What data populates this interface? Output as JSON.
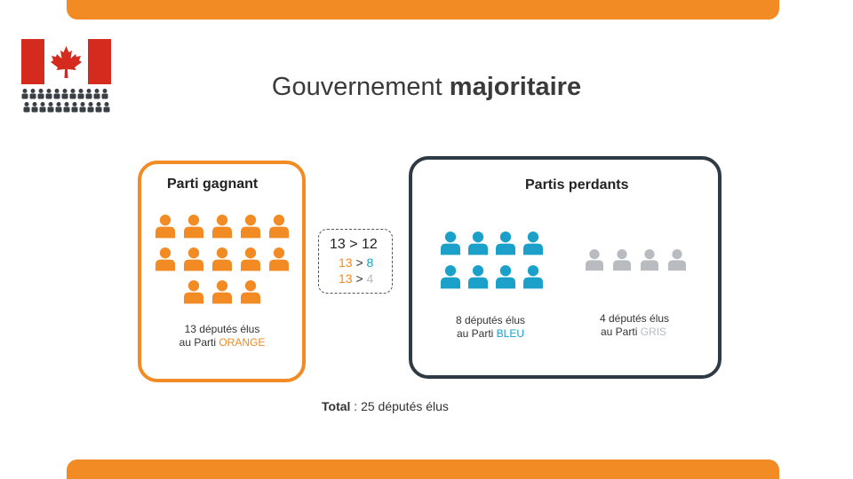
{
  "title": {
    "light": "Gouvernement",
    "bold": "majoritaire"
  },
  "winner": {
    "label": "Parti gagnant",
    "count": 13,
    "caption_line1": "13 députés élus",
    "caption_prefix": "au Parti",
    "party": "ORANGE",
    "color": "#f28b23"
  },
  "losers": {
    "label": "Partis perdants",
    "blue": {
      "count": 8,
      "caption_line1": "8 députés élus",
      "caption_prefix": "au Parti",
      "party": "BLEU",
      "color": "#1ba1c9"
    },
    "gray": {
      "count": 4,
      "caption_line1": "4 députés élus",
      "caption_prefix": "au Parti",
      "party": "GRIS",
      "color": "#b8bcc0"
    }
  },
  "comparison": {
    "main": "13 > 12",
    "blue_left": "13",
    "blue_op": ">",
    "blue_right": "8",
    "gray_left": "13",
    "gray_op": ">",
    "gray_right": "4"
  },
  "total": {
    "label": "Total",
    "value": " : 25 députés élus"
  },
  "icons": {
    "flag": "canada-flag-icon",
    "parliament": "parliament-seats-icon",
    "person": "person-icon"
  },
  "colors": {
    "accent": "#f28b23",
    "dark": "#2f3b44"
  }
}
